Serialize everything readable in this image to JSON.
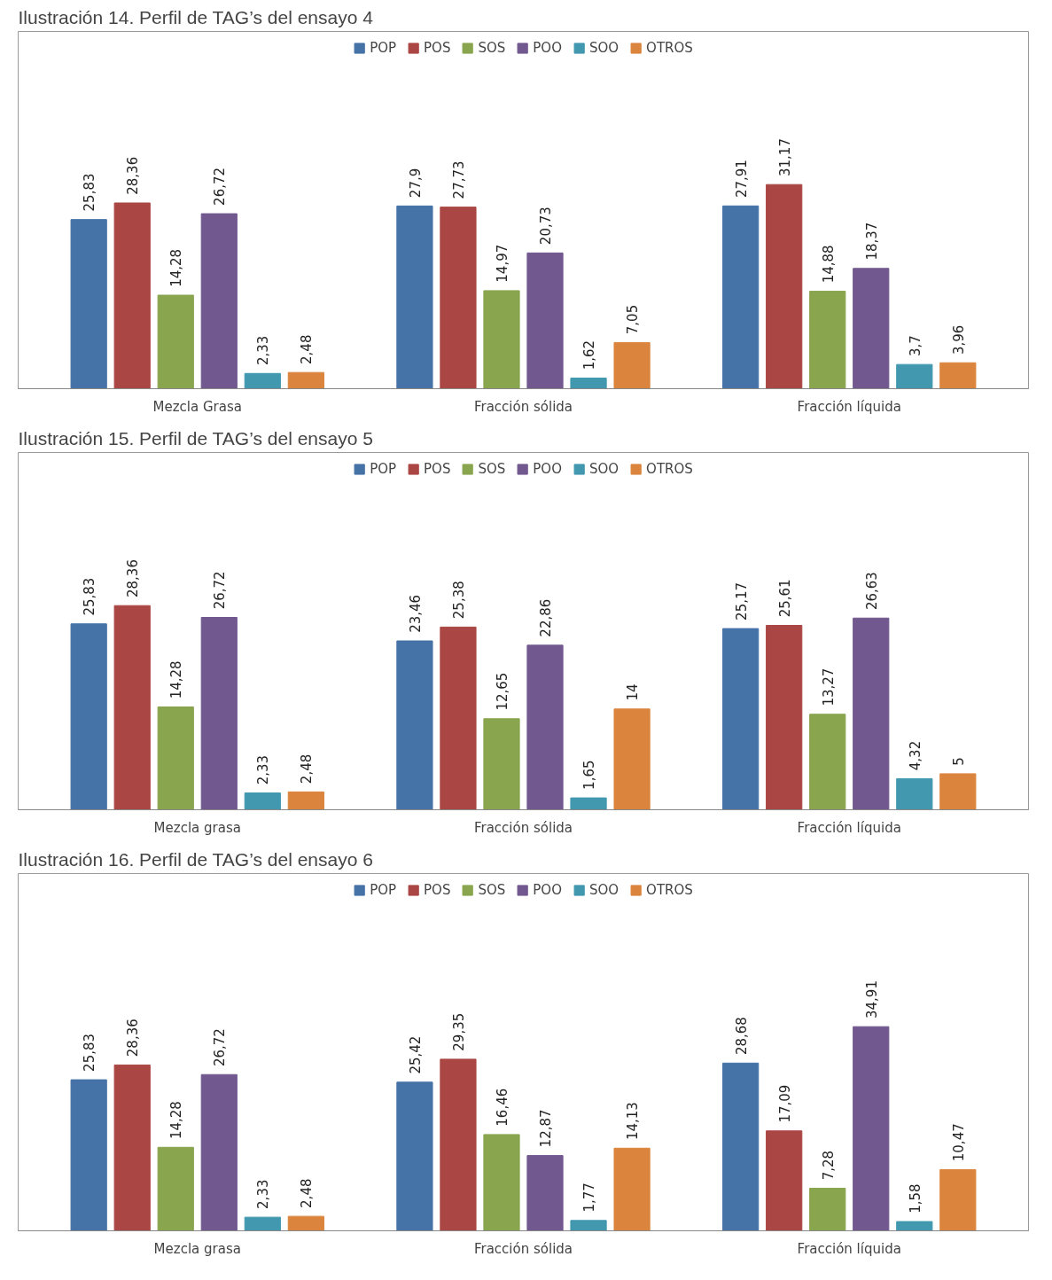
{
  "chart_data": [
    {
      "type": "bar",
      "title": "Ilustración 14. Perfil de TAG’s del ensayo 4",
      "categories": [
        "Mezcla Grasa",
        "Fracción sólida",
        "Fracción líquida"
      ],
      "legend": "top",
      "series": [
        {
          "name": "POP",
          "color": "#4572a7",
          "values": [
            25.83,
            27.9,
            27.91
          ],
          "value_labels": [
            "25,83",
            "27,9",
            "27,91"
          ]
        },
        {
          "name": "POS",
          "color": "#aa4643",
          "values": [
            28.36,
            27.73,
            31.17
          ],
          "value_labels": [
            "28,36",
            "27,73",
            "31,17"
          ]
        },
        {
          "name": "SOS",
          "color": "#89a54e",
          "values": [
            14.28,
            14.97,
            14.88
          ],
          "value_labels": [
            "14,28",
            "14,97",
            "14,88"
          ]
        },
        {
          "name": "POO",
          "color": "#71588f",
          "values": [
            26.72,
            20.73,
            18.37
          ],
          "value_labels": [
            "26,72",
            "20,73",
            "18,37"
          ]
        },
        {
          "name": "SOO",
          "color": "#4198af",
          "values": [
            2.33,
            1.62,
            3.7
          ],
          "value_labels": [
            "2,33",
            "1,62",
            "3,7"
          ]
        },
        {
          "name": "OTROS",
          "color": "#db843d",
          "values": [
            2.48,
            7.05,
            3.96
          ],
          "value_labels": [
            "2,48",
            "7,05",
            "3,96"
          ]
        }
      ]
    },
    {
      "type": "bar",
      "title": "Ilustración 15. Perfil de TAG’s del ensayo 5",
      "categories": [
        "Mezcla grasa",
        "Fracción sólida",
        "Fracción líquida"
      ],
      "legend": "top",
      "series": [
        {
          "name": "POP",
          "color": "#4572a7",
          "values": [
            25.83,
            23.46,
            25.17
          ],
          "value_labels": [
            "25,83",
            "23,46",
            "25,17"
          ]
        },
        {
          "name": "POS",
          "color": "#aa4643",
          "values": [
            28.36,
            25.38,
            25.61
          ],
          "value_labels": [
            "28,36",
            "25,38",
            "25,61"
          ]
        },
        {
          "name": "SOS",
          "color": "#89a54e",
          "values": [
            14.28,
            12.65,
            13.27
          ],
          "value_labels": [
            "14,28",
            "12,65",
            "13,27"
          ]
        },
        {
          "name": "POO",
          "color": "#71588f",
          "values": [
            26.72,
            22.86,
            26.63
          ],
          "value_labels": [
            "26,72",
            "22,86",
            "26,63"
          ]
        },
        {
          "name": "SOO",
          "color": "#4198af",
          "values": [
            2.33,
            1.65,
            4.32
          ],
          "value_labels": [
            "2,33",
            "1,65",
            "4,32"
          ]
        },
        {
          "name": "OTROS",
          "color": "#db843d",
          "values": [
            2.48,
            14,
            5
          ],
          "value_labels": [
            "2,48",
            "14",
            "5"
          ]
        }
      ]
    },
    {
      "type": "bar",
      "title": "Ilustración 16. Perfil de TAG’s del ensayo 6",
      "categories": [
        "Mezcla grasa",
        "Fracción sólida",
        "Fracción líquida"
      ],
      "legend": "top",
      "series": [
        {
          "name": "POP",
          "color": "#4572a7",
          "values": [
            25.83,
            25.42,
            28.68
          ],
          "value_labels": [
            "25,83",
            "25,42",
            "28,68"
          ]
        },
        {
          "name": "POS",
          "color": "#aa4643",
          "values": [
            28.36,
            29.35,
            17.09
          ],
          "value_labels": [
            "28,36",
            "29,35",
            "17,09"
          ]
        },
        {
          "name": "SOS",
          "color": "#89a54e",
          "values": [
            14.28,
            16.46,
            7.28
          ],
          "value_labels": [
            "14,28",
            "16,46",
            "7,28"
          ]
        },
        {
          "name": "POO",
          "color": "#71588f",
          "values": [
            26.72,
            12.87,
            34.91
          ],
          "value_labels": [
            "26,72",
            "12,87",
            "34,91"
          ]
        },
        {
          "name": "SOO",
          "color": "#4198af",
          "values": [
            2.33,
            1.77,
            1.58
          ],
          "value_labels": [
            "2,33",
            "1,77",
            "1,58"
          ]
        },
        {
          "name": "OTROS",
          "color": "#db843d",
          "values": [
            2.48,
            14.13,
            10.47
          ],
          "value_labels": [
            "2,48",
            "14,13",
            "10,47"
          ]
        }
      ]
    }
  ]
}
